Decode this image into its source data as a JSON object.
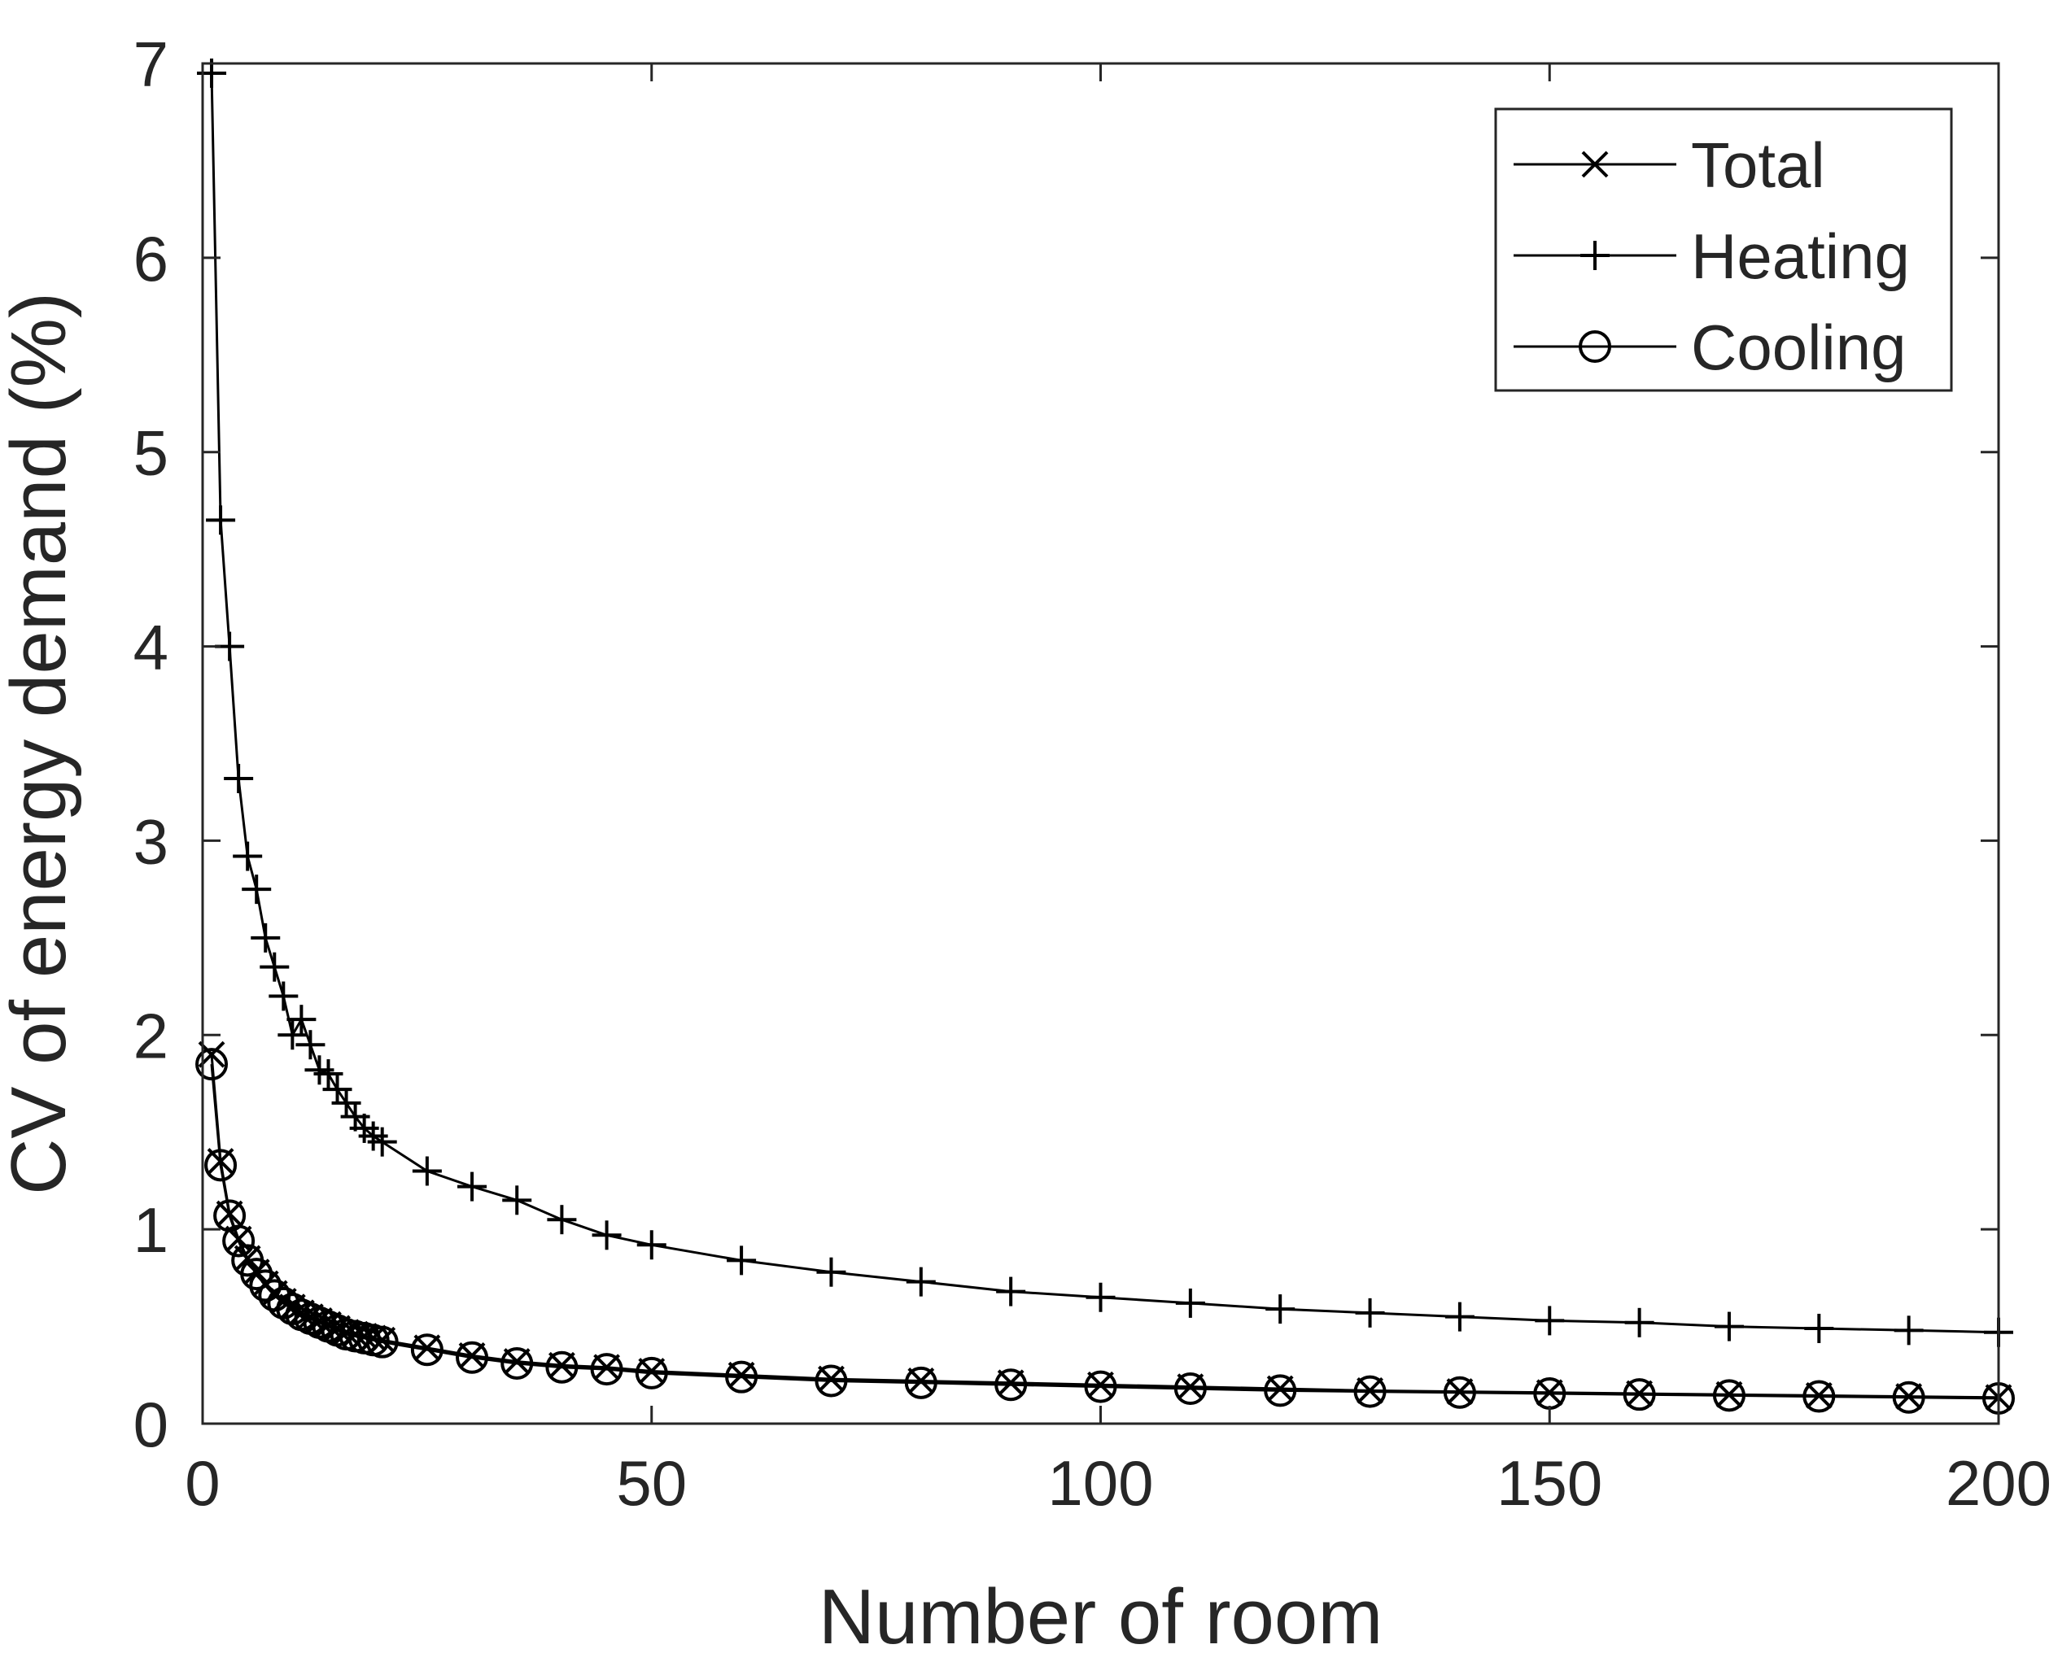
{
  "chart_data": {
    "type": "line",
    "xlabel": "Number of room",
    "ylabel": "CV of energy demand (%)",
    "xlim": [
      0,
      200
    ],
    "ylim": [
      0,
      7
    ],
    "xticks": [
      0,
      50,
      100,
      150,
      200
    ],
    "yticks": [
      0,
      1,
      2,
      3,
      4,
      5,
      6,
      7
    ],
    "grid": false,
    "legend_position": "top-right",
    "color": "#000000",
    "x": [
      1,
      2,
      3,
      4,
      5,
      6,
      7,
      8,
      9,
      10,
      11,
      12,
      13,
      14,
      15,
      16,
      17,
      18,
      19,
      20,
      25,
      30,
      35,
      40,
      45,
      50,
      60,
      70,
      80,
      90,
      100,
      110,
      120,
      130,
      140,
      150,
      160,
      170,
      180,
      190,
      200
    ],
    "series": [
      {
        "name": "Total",
        "marker": "x",
        "values": [
          1.9,
          1.35,
          1.08,
          0.95,
          0.85,
          0.78,
          0.72,
          0.67,
          0.63,
          0.6,
          0.57,
          0.55,
          0.53,
          0.51,
          0.49,
          0.47,
          0.46,
          0.45,
          0.44,
          0.43,
          0.39,
          0.35,
          0.32,
          0.3,
          0.29,
          0.27,
          0.25,
          0.23,
          0.22,
          0.21,
          0.2,
          0.19,
          0.18,
          0.17,
          0.165,
          0.16,
          0.155,
          0.15,
          0.145,
          0.14,
          0.135
        ]
      },
      {
        "name": "Heating",
        "marker": "+",
        "values": [
          6.95,
          4.65,
          4.0,
          3.32,
          2.92,
          2.75,
          2.5,
          2.35,
          2.2,
          2.0,
          2.08,
          1.95,
          1.82,
          1.8,
          1.72,
          1.65,
          1.58,
          1.52,
          1.48,
          1.45,
          1.3,
          1.22,
          1.15,
          1.05,
          0.97,
          0.92,
          0.84,
          0.78,
          0.73,
          0.68,
          0.65,
          0.62,
          0.59,
          0.57,
          0.55,
          0.53,
          0.52,
          0.5,
          0.49,
          0.48,
          0.47
        ]
      },
      {
        "name": "Cooling",
        "marker": "o",
        "values": [
          1.85,
          1.33,
          1.07,
          0.94,
          0.84,
          0.77,
          0.71,
          0.66,
          0.62,
          0.59,
          0.56,
          0.54,
          0.52,
          0.5,
          0.48,
          0.46,
          0.45,
          0.44,
          0.43,
          0.42,
          0.38,
          0.34,
          0.31,
          0.29,
          0.28,
          0.26,
          0.24,
          0.22,
          0.21,
          0.2,
          0.19,
          0.18,
          0.17,
          0.165,
          0.16,
          0.155,
          0.15,
          0.145,
          0.14,
          0.135,
          0.13
        ]
      }
    ]
  }
}
